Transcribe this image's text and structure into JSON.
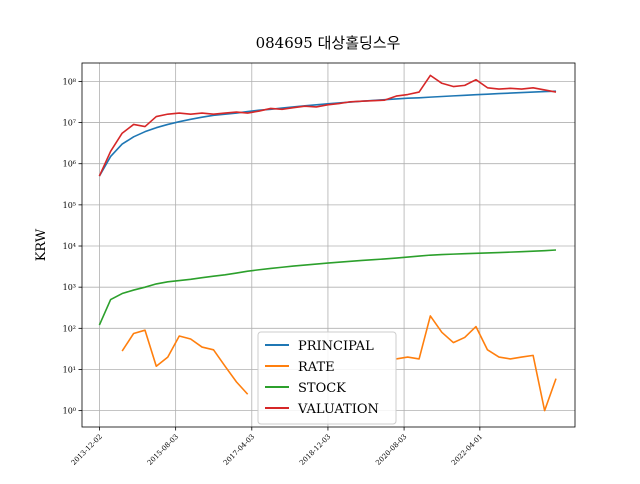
{
  "chart_data": {
    "type": "line",
    "title": "084695 대상홀딩스우",
    "ylabel": "KRW",
    "log_y": true,
    "grid": true,
    "legend": "lower center",
    "x": [
      "2013-12-01",
      "2014-03-01",
      "2014-06-01",
      "2014-09-01",
      "2014-12-01",
      "2015-03-01",
      "2015-06-01",
      "2015-09-01",
      "2015-12-01",
      "2016-03-01",
      "2016-06-01",
      "2016-09-01",
      "2016-12-01",
      "2017-03-01",
      "2017-06-01",
      "2017-09-01",
      "2017-12-01",
      "2018-03-01",
      "2018-06-01",
      "2018-09-01",
      "2018-12-01",
      "2019-03-01",
      "2019-06-01",
      "2019-09-01",
      "2019-12-01",
      "2020-03-01",
      "2020-06-01",
      "2020-09-01",
      "2020-12-01",
      "2021-03-01",
      "2021-06-01",
      "2021-09-01",
      "2021-12-01",
      "2022-03-01",
      "2022-06-01",
      "2022-09-01",
      "2022-12-01",
      "2023-03-01",
      "2023-06-01",
      "2023-09-01",
      "2023-12-01"
    ],
    "xlim": [
      "2013-07-15",
      "2024-05-01"
    ],
    "xticks": [
      "2013-12-02",
      "2015-08-03",
      "2017-04-03",
      "2018-12-03",
      "2020-08-03",
      "2022-04-01"
    ],
    "ylim": [
      0.4,
      280000000
    ],
    "yticks": [
      {
        "value": 1,
        "label": "10⁰"
      },
      {
        "value": 10,
        "label": "10¹"
      },
      {
        "value": 100,
        "label": "10²"
      },
      {
        "value": 1000,
        "label": "10³"
      },
      {
        "value": 10000,
        "label": "10⁴"
      },
      {
        "value": 100000,
        "label": "10⁵"
      },
      {
        "value": 1000000,
        "label": "10⁶"
      },
      {
        "value": 10000000,
        "label": "10⁷"
      },
      {
        "value": 100000000,
        "label": "10⁸"
      }
    ],
    "series": [
      {
        "name": "PRINCIPAL",
        "color": "#1f77b4",
        "values": [
          500000,
          1500000,
          3000000,
          4500000,
          6000000,
          7500000,
          9000000,
          10500000,
          12000000,
          13500000,
          15000000,
          16000000,
          17000000,
          18500000,
          20000000,
          21000000,
          22500000,
          24000000,
          25500000,
          27000000,
          28500000,
          30000000,
          31500000,
          33000000,
          34500000,
          36000000,
          37500000,
          39000000,
          40000000,
          41500000,
          43000000,
          44500000,
          46000000,
          47500000,
          49000000,
          50500000,
          52000000,
          53500000,
          55000000,
          56500000,
          58000000
        ]
      },
      {
        "name": "RATE",
        "color": "#ff7f0e",
        "values": [
          null,
          null,
          28,
          75,
          90,
          12,
          20,
          65,
          55,
          35,
          30,
          12,
          5,
          2.5,
          null,
          null,
          null,
          null,
          null,
          null,
          null,
          null,
          null,
          null,
          null,
          null,
          18,
          20,
          18,
          200,
          80,
          45,
          60,
          110,
          30,
          20,
          18,
          20,
          22,
          1,
          6
        ]
      },
      {
        "name": "STOCK",
        "color": "#2ca02c",
        "values": [
          120,
          500,
          700,
          850,
          1000,
          1200,
          1350,
          1450,
          1550,
          1700,
          1850,
          2000,
          2200,
          2450,
          2650,
          2850,
          3050,
          3250,
          3450,
          3650,
          3850,
          4050,
          4250,
          4450,
          4650,
          4850,
          5100,
          5400,
          5700,
          6000,
          6200,
          6350,
          6500,
          6650,
          6800,
          6950,
          7100,
          7300,
          7500,
          7700,
          8000
        ]
      },
      {
        "name": "VALUATION",
        "color": "#d62728",
        "values": [
          500000,
          2000000,
          5500000,
          9000000,
          8000000,
          14000000,
          16000000,
          17000000,
          16000000,
          17000000,
          16000000,
          17000000,
          18000000,
          17000000,
          19000000,
          22000000,
          21000000,
          23000000,
          25000000,
          24000000,
          27000000,
          29000000,
          32000000,
          33000000,
          34000000,
          35000000,
          44000000,
          48000000,
          55000000,
          140000000,
          90000000,
          75000000,
          80000000,
          110000000,
          70000000,
          65000000,
          68000000,
          65000000,
          70000000,
          62000000,
          55000000
        ]
      }
    ]
  }
}
